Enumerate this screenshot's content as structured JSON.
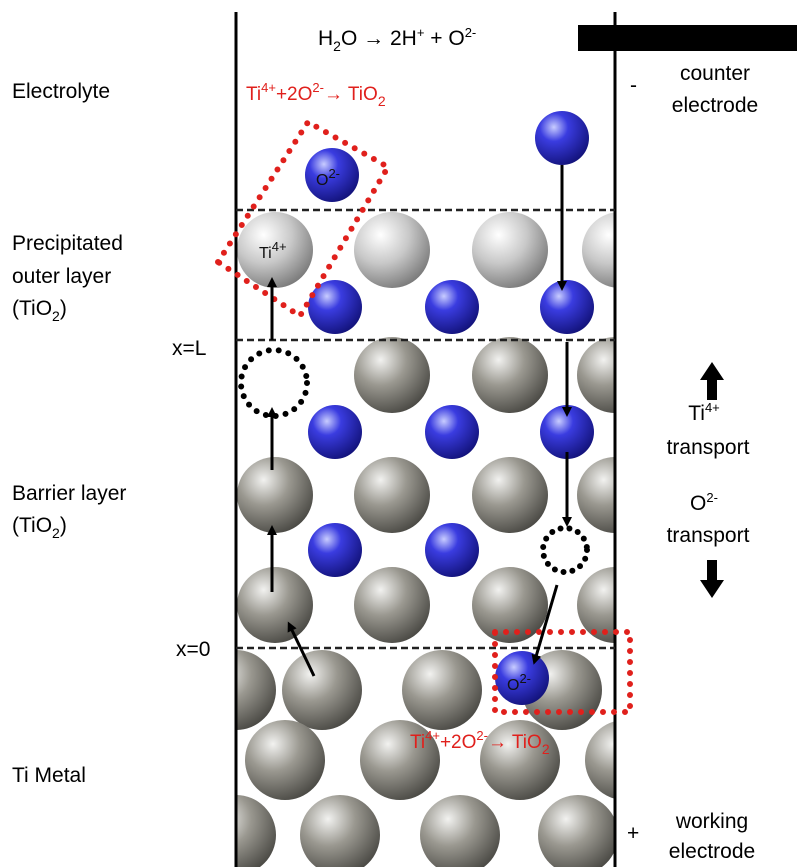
{
  "reaction_top": {
    "parts": [
      "H",
      "2",
      "O → 2H",
      "+",
      " + O",
      "2-"
    ]
  },
  "reaction_outer": {
    "parts": [
      "Ti",
      "4+",
      "+2O",
      "2-",
      "→ TiO",
      "2"
    ]
  },
  "reaction_inner": {
    "parts": [
      "Ti",
      "4+",
      "+2O",
      "2-",
      "→ TiO",
      "2"
    ]
  },
  "left_labels": {
    "electrolyte": "Electrolyte",
    "outer_layer": [
      "Precipitated",
      "outer layer"
    ],
    "outer_formula": [
      "(TiO",
      "2",
      ")"
    ],
    "x_L": "x=L",
    "barrier": "Barrier layer",
    "barrier_formula": [
      "(TiO",
      "2",
      ")"
    ],
    "x_0": "x=0",
    "metal": "Ti Metal"
  },
  "right_labels": {
    "minus": "-",
    "counter": [
      "counter",
      "electrode"
    ],
    "ti_transport": [
      "Ti",
      "4+",
      "transport"
    ],
    "o_transport": [
      "O",
      "2-",
      "transport"
    ],
    "plus": "+",
    "working": [
      "working",
      "electrode"
    ]
  },
  "atoms": {
    "o_top": [
      "O",
      "2-"
    ],
    "ti": [
      "Ti",
      "4+"
    ],
    "o_bottom": [
      "O",
      "2-"
    ]
  }
}
